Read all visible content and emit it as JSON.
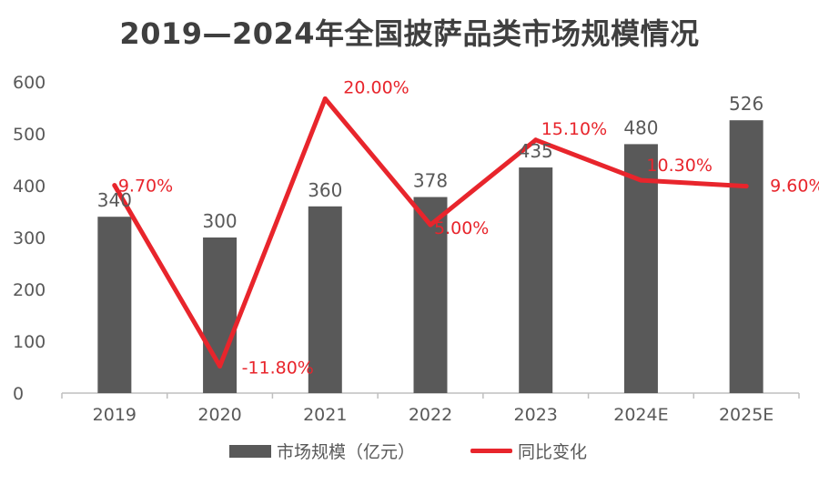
{
  "chart_data": {
    "type": "bar+line",
    "title": "2019—2024年全国披萨品类市场规模情况",
    "categories": [
      "2019",
      "2020",
      "2021",
      "2022",
      "2023",
      "2024E",
      "2025E"
    ],
    "series": [
      {
        "name": "市场规模（亿元）",
        "type": "bar",
        "axis": "left",
        "values": [
          340,
          300,
          360,
          378,
          435,
          480,
          526
        ],
        "labels": [
          "340",
          "300",
          "360",
          "378",
          "435",
          "480",
          "526"
        ]
      },
      {
        "name": "同比变化",
        "type": "line",
        "axis": "right",
        "values": [
          9.7,
          -11.8,
          20.0,
          5.0,
          15.1,
          10.3,
          9.6
        ],
        "labels": [
          "9.70%",
          "-11.80%",
          "20.00%",
          "5.00%",
          "15.10%",
          "10.30%",
          "9.60%"
        ]
      }
    ],
    "ylim": [
      0,
      600
    ],
    "yticks": [
      "0",
      "100",
      "200",
      "300",
      "400",
      "500",
      "600"
    ],
    "secondary_ylim": [
      -15,
      22
    ],
    "colors": {
      "bar": "#595959",
      "line": "#e8252c",
      "axis": "#bfbfbf"
    },
    "legend": {
      "position": "bottom",
      "items": [
        "市场规模（亿元）",
        "同比变化"
      ]
    }
  }
}
